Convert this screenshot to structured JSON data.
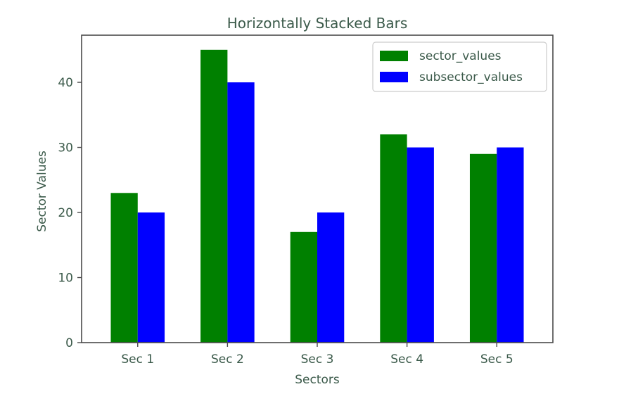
{
  "chart_data": {
    "type": "bar",
    "title": "Horizontally Stacked Bars",
    "xlabel": "Sectors",
    "ylabel": "Sector Values",
    "categories": [
      "Sec 1",
      "Sec 2",
      "Sec 3",
      "Sec 4",
      "Sec 5"
    ],
    "series": [
      {
        "name": "sector_values",
        "color": "#008000",
        "values": [
          23,
          45,
          17,
          32,
          29
        ]
      },
      {
        "name": "subsector_values",
        "color": "#0000ff",
        "values": [
          20,
          40,
          20,
          30,
          30
        ]
      }
    ],
    "ylim": [
      0,
      47.25
    ],
    "yticks": [
      0,
      10,
      20,
      30,
      40
    ],
    "grid": false,
    "legend_position": "top-right"
  }
}
